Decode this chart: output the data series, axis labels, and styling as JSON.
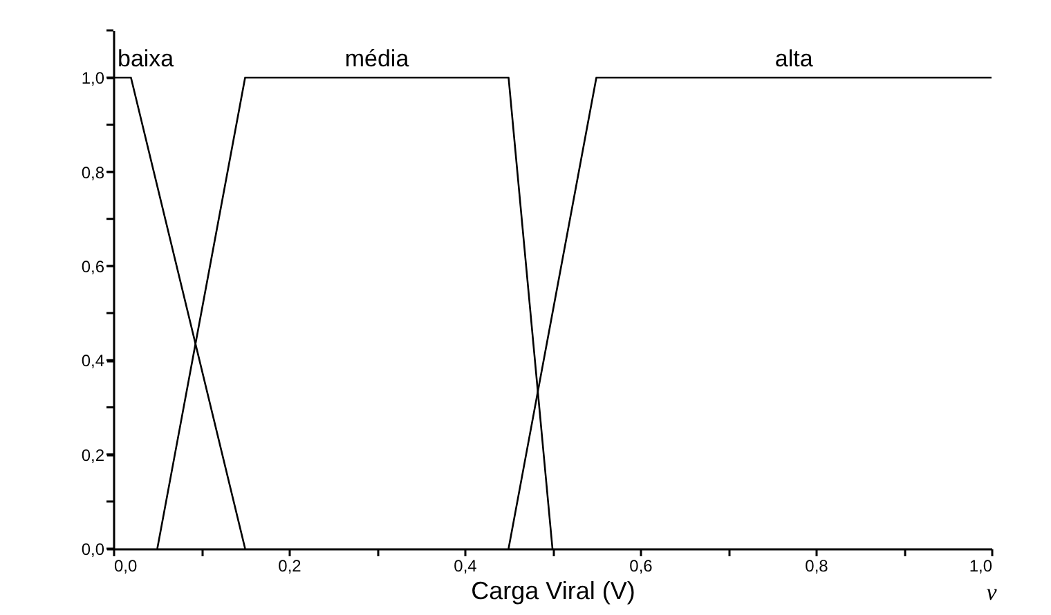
{
  "chart_data": {
    "type": "line",
    "xlabel": "Carga Viral (V)",
    "annotations": [
      "ν"
    ],
    "series": [
      {
        "name": "baixa",
        "color": "#000000",
        "x": [
          0,
          0.02,
          0.15
        ],
        "values": [
          1,
          1,
          0
        ]
      },
      {
        "name": "média",
        "color": "#000000",
        "x": [
          0.05,
          0.15,
          0.45,
          0.5
        ],
        "values": [
          0,
          1,
          1,
          0
        ]
      },
      {
        "name": "alta",
        "color": "#000000",
        "x": [
          0.45,
          0.55,
          1.0
        ],
        "values": [
          0,
          1,
          1
        ]
      }
    ],
    "xlim": [
      0,
      1.0
    ],
    "ylim": [
      0,
      1.1
    ],
    "xticks": [
      {
        "value": 0,
        "label": "0,0"
      },
      {
        "value": 0.1,
        "label": null
      },
      {
        "value": 0.2,
        "label": "0,2"
      },
      {
        "value": 0.3,
        "label": null
      },
      {
        "value": 0.4,
        "label": "0,4"
      },
      {
        "value": 0.5,
        "label": null
      },
      {
        "value": 0.6,
        "label": "0,6"
      },
      {
        "value": 0.7,
        "label": null
      },
      {
        "value": 0.8,
        "label": "0,8"
      },
      {
        "value": 0.9,
        "label": null
      },
      {
        "value": 1.0,
        "label": "1,0"
      }
    ],
    "yticks": [
      {
        "value": 0,
        "label": "0,0"
      },
      {
        "value": 0.1,
        "label": null
      },
      {
        "value": 0.2,
        "label": "0,2"
      },
      {
        "value": 0.3,
        "label": null
      },
      {
        "value": 0.4,
        "label": "0,4"
      },
      {
        "value": 0.5,
        "label": null
      },
      {
        "value": 0.6,
        "label": "0,6"
      },
      {
        "value": 0.7,
        "label": null
      },
      {
        "value": 0.8,
        "label": "0,8"
      },
      {
        "value": 0.9,
        "label": null
      },
      {
        "value": 1.0,
        "label": "1,0"
      },
      {
        "value": 1.1,
        "label": null
      }
    ],
    "marker": "none",
    "line_style": "solid"
  }
}
